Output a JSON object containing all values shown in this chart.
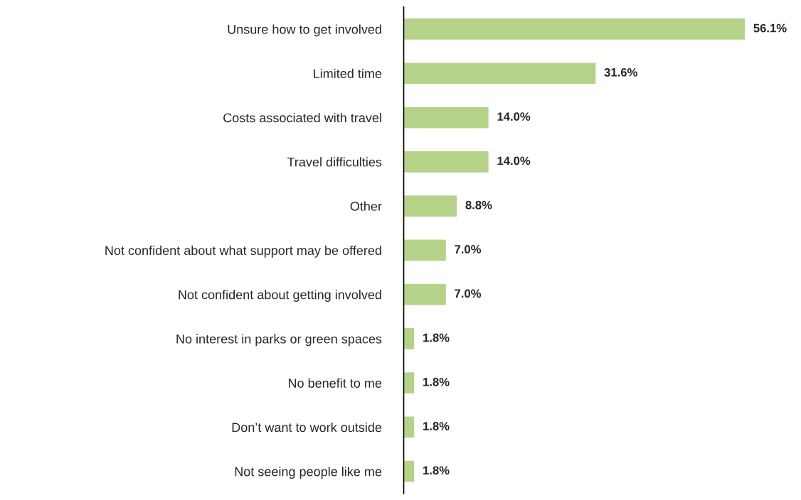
{
  "chart_data": {
    "type": "bar",
    "orientation": "horizontal",
    "categories": [
      "Unsure how to get involved",
      "Limited time",
      "Costs associated with travel",
      "Travel difficulties",
      "Other",
      "Not confident about what support may be offered",
      "Not confident about getting involved",
      "No interest in parks or green spaces",
      "No benefit to me",
      "Don’t want to work outside",
      "Not seeing people like me"
    ],
    "values": [
      56.1,
      31.6,
      14.0,
      14.0,
      8.8,
      7.0,
      7.0,
      1.8,
      1.8,
      1.8,
      1.8
    ],
    "value_labels": [
      "56.1%",
      "31.6%",
      "14.0%",
      "14.0%",
      "8.8%",
      "7.0%",
      "7.0%",
      "1.8%",
      "1.8%",
      "1.8%",
      "1.8%"
    ],
    "color": "#b4d389",
    "grid": false,
    "legend": false
  }
}
